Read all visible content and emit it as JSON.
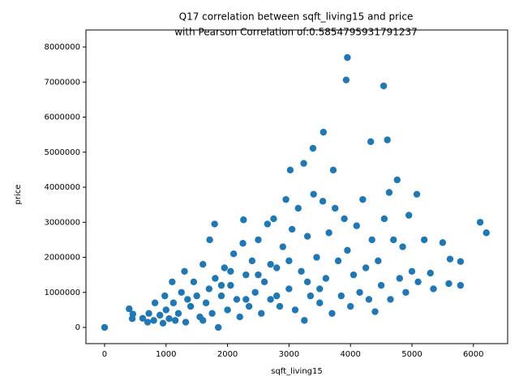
{
  "chart_data": {
    "type": "scatter",
    "title": [
      "Q17 correlation between sqft_living15 and price",
      "with Pearson Correlation of:0.5854795931791237"
    ],
    "x_label": "sqft_living15",
    "y_label": "price",
    "color": "#1f77b4",
    "xlim": [
      -303,
      6557
    ],
    "xticks": [
      0,
      1000,
      2000,
      3000,
      4000,
      5000,
      6000
    ],
    "ylim": [
      -462000,
      8486000
    ],
    "yticks": [
      0,
      1000000,
      2000000,
      3000000,
      4000000,
      5000000,
      6000000,
      7000000,
      8000000
    ],
    "x": [
      0,
      400,
      450,
      460,
      620,
      700,
      720,
      800,
      820,
      900,
      950,
      980,
      1000,
      1050,
      1100,
      1120,
      1200,
      1250,
      1300,
      1320,
      1400,
      1450,
      1500,
      1550,
      1600,
      1650,
      1700,
      1710,
      1750,
      1790,
      1800,
      1850,
      1900,
      1950,
      2000,
      2050,
      2100,
      2150,
      2200,
      2250,
      2260,
      2300,
      2350,
      2400,
      2450,
      2500,
      2550,
      2600,
      2650,
      2700,
      2750,
      2800,
      2850,
      2900,
      2950,
      3000,
      3020,
      3050,
      3100,
      3150,
      3200,
      3240,
      3250,
      3300,
      3350,
      3390,
      3400,
      3450,
      3500,
      3560,
      3550,
      3600,
      3650,
      3700,
      3720,
      3750,
      3800,
      3850,
      3900,
      3930,
      3950,
      3950,
      4000,
      4050,
      4100,
      4150,
      4200,
      4250,
      4300,
      4330,
      4350,
      4400,
      4450,
      4500,
      4540,
      4550,
      4600,
      4630,
      4650,
      4700,
      4760,
      4800,
      4850,
      4900,
      4950,
      5000,
      5080,
      5100,
      5200,
      5300,
      5350,
      5500,
      5600,
      5620,
      5790,
      5790,
      6110,
      6210,
      1150,
      1350,
      1600,
      2050,
      2500,
      3000,
      2800,
      3300,
      1900,
      2300,
      2700,
      3500
    ],
    "y": [
      0,
      530000,
      250000,
      380000,
      260000,
      150000,
      400000,
      200000,
      700000,
      350000,
      120000,
      900000,
      500000,
      250000,
      1300000,
      700000,
      400000,
      1000000,
      1600000,
      150000,
      600000,
      1300000,
      900000,
      300000,
      1800000,
      700000,
      1100000,
      2500000,
      400000,
      2950000,
      1400000,
      0,
      900000,
      1700000,
      500000,
      1200000,
      2100000,
      800000,
      300000,
      2400000,
      3070000,
      1500000,
      600000,
      1900000,
      1000000,
      2500000,
      400000,
      1300000,
      2950000,
      800000,
      3100000,
      1700000,
      600000,
      2300000,
      3650000,
      1100000,
      4490000,
      2800000,
      500000,
      3400000,
      1600000,
      4680000,
      200000,
      2600000,
      900000,
      5110000,
      3800000,
      2000000,
      700000,
      5570000,
      3600000,
      1400000,
      2700000,
      400000,
      4490000,
      3400000,
      1900000,
      900000,
      3100000,
      7060000,
      7700000,
      2200000,
      600000,
      1500000,
      2900000,
      1000000,
      3650000,
      1700000,
      800000,
      5300000,
      2500000,
      450000,
      1900000,
      1200000,
      6890000,
      3100000,
      5350000,
      3850000,
      800000,
      2500000,
      4210000,
      1400000,
      2300000,
      1000000,
      3200000,
      1600000,
      3800000,
      1300000,
      2500000,
      1550000,
      1100000,
      2420000,
      1250000,
      1950000,
      1880000,
      1200000,
      3000000,
      2700000,
      200000,
      800000,
      200000,
      1600000,
      1500000,
      1900000,
      900000,
      1300000,
      1200000,
      800000,
      1800000,
      1100000
    ]
  }
}
